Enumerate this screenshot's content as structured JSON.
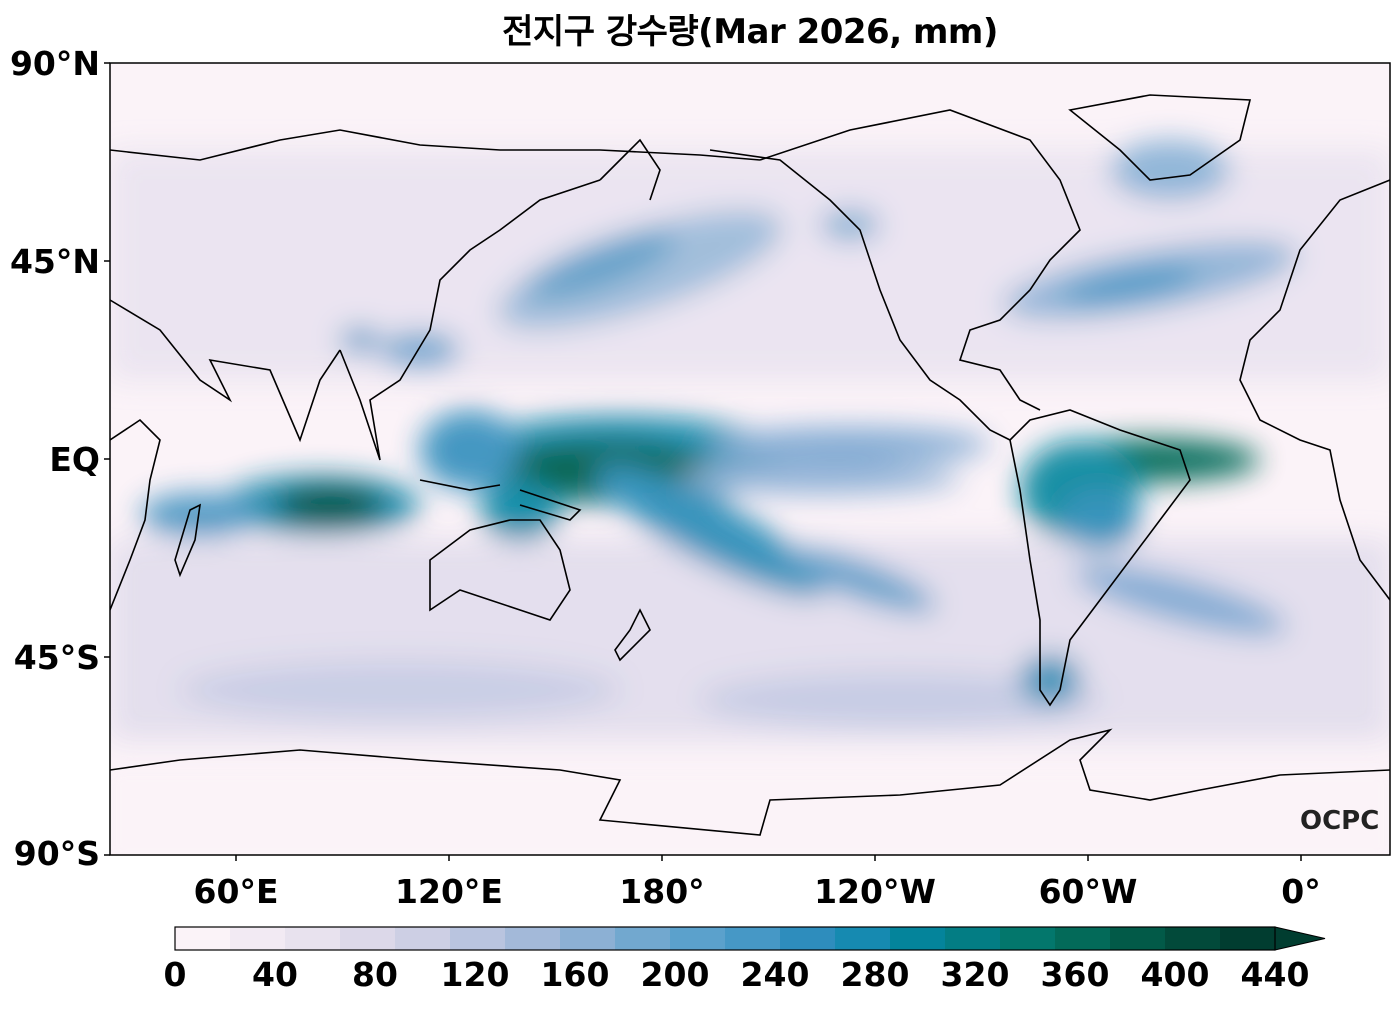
{
  "title": "전지구 강수량(Mar 2026, mm)",
  "lat_labels": [
    "90°N",
    "45°N",
    "EQ",
    "45°S",
    "90°S"
  ],
  "lon_labels": [
    "60°E",
    "120°E",
    "180°",
    "120°W",
    "60°W",
    "0°"
  ],
  "colorbar": {
    "ticks": [
      "0",
      "40",
      "80",
      "120",
      "160",
      "200",
      "240",
      "280",
      "320",
      "360",
      "400",
      "440"
    ],
    "min": 0,
    "max": 440,
    "extend": "max",
    "colors": [
      "#fbf3f8",
      "#f2eaf3",
      "#e8e2ee",
      "#dcd8e9",
      "#cdcfe4",
      "#b9c4df",
      "#a3b9d9",
      "#8cb0d4",
      "#72a8cf",
      "#5ba1cc",
      "#4698c6",
      "#2e8dbd",
      "#168ab1",
      "#04849b",
      "#037d84",
      "#03776c",
      "#036a59",
      "#025a48",
      "#024a3a",
      "#013d30"
    ]
  },
  "logo": "OCPC"
}
